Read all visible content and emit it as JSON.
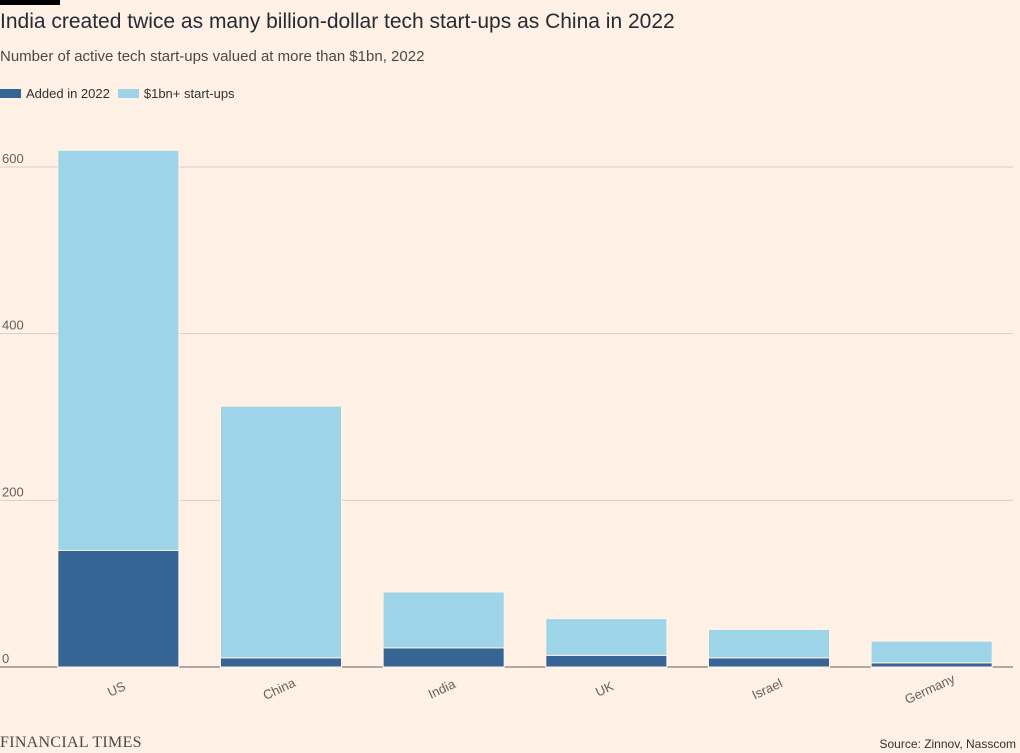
{
  "header": {
    "title": "India created twice as many billion-dollar tech start-ups as China in 2022",
    "subtitle": "Number of active tech start-ups valued at more than $1bn, 2022"
  },
  "legend": {
    "items": [
      {
        "label": "Added in 2022",
        "color": "#356495"
      },
      {
        "label": "$1bn+ start-ups",
        "color": "#9dd4e8"
      }
    ]
  },
  "chart_data": {
    "type": "bar",
    "stacked": true,
    "categories": [
      "US",
      "China",
      "India",
      "UK",
      "Israel",
      "Germany"
    ],
    "series": [
      {
        "name": "Added in 2022",
        "color": "#356495",
        "values": [
          140,
          11,
          23,
          14,
          11,
          5
        ]
      },
      {
        "name": "$1bn+ start-ups",
        "color": "#9dd4e8",
        "values": [
          480,
          302,
          67,
          44,
          34,
          26
        ]
      }
    ],
    "totals": [
      620,
      313,
      90,
      58,
      45,
      31
    ],
    "ylim": [
      0,
      640
    ],
    "yticks": [
      0,
      200,
      400,
      600
    ],
    "grid": true,
    "legend_position": "top-left"
  },
  "footer": {
    "logo": "FINANCIAL TIMES",
    "source": "Source: Zinnov, Nasscom"
  }
}
